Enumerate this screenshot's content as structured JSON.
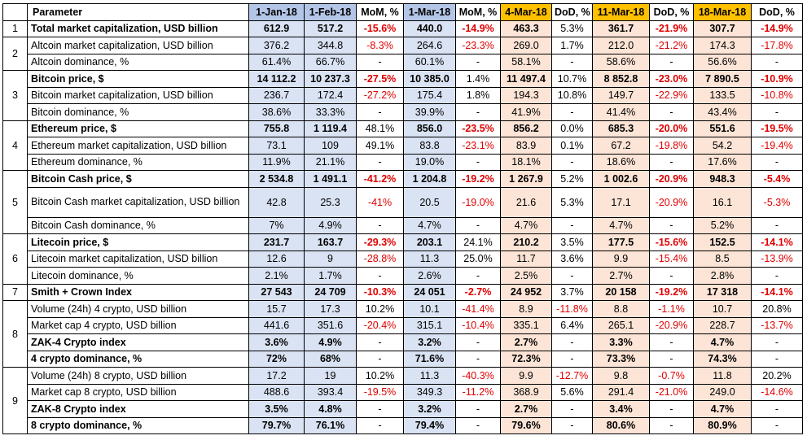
{
  "headers": [
    "",
    "Parameter",
    "1-Jan-18",
    "1-Feb-18",
    "MoM, %",
    "1-Mar-18",
    "MoM, %",
    "4-Mar-18",
    "DoD, %",
    "11-Mar-18",
    "DoD, %",
    "18-Mar-18",
    "DoD, %"
  ],
  "groups": [
    {
      "num": "1",
      "rows": [
        {
          "bold": true,
          "param": "Total market capitalization, USD billion",
          "v": [
            "612.9",
            "517.2",
            "-15.6%",
            "440.0",
            "-14.9%",
            "463.3",
            "5.3%",
            "361.7",
            "-21.9%",
            "307.7",
            "-14.9%"
          ]
        }
      ]
    },
    {
      "num": "2",
      "rows": [
        {
          "bold": false,
          "param": "Altcoin market capitalization, USD billion",
          "v": [
            "376.2",
            "344.8",
            "-8.3%",
            "264.6",
            "-23.3%",
            "269.0",
            "1.7%",
            "212.0",
            "-21.2%",
            "174.3",
            "-17.8%"
          ]
        },
        {
          "bold": false,
          "param": "Altcoin dominance, %",
          "v": [
            "61.4%",
            "66.7%",
            "-",
            "60.1%",
            "-",
            "58.1%",
            "-",
            "58.6%",
            "-",
            "56.6%",
            "-"
          ]
        }
      ]
    },
    {
      "num": "3",
      "rows": [
        {
          "bold": true,
          "param": "Bitcoin price, $",
          "v": [
            "14 112.2",
            "10 237.3",
            "-27.5%",
            "10 385.0",
            "1.4%",
            "11 497.4",
            "10.7%",
            "8 852.8",
            "-23.0%",
            "7 890.5",
            "-10.9%"
          ]
        },
        {
          "bold": false,
          "param": "Bitcoin market capitalization, USD billion",
          "v": [
            "236.7",
            "172.4",
            "-27.2%",
            "175.4",
            "1.8%",
            "194.3",
            "10.8%",
            "149.7",
            "-22.9%",
            "133.5",
            "-10.8%"
          ]
        },
        {
          "bold": false,
          "param": "Bitcoin dominance, %",
          "v": [
            "38.6%",
            "33.3%",
            "-",
            "39.9%",
            "-",
            "41.9%",
            "-",
            "41.4%",
            "-",
            "43.4%",
            "-"
          ]
        }
      ]
    },
    {
      "num": "4",
      "rows": [
        {
          "bold": true,
          "param": "Ethereum price, $",
          "v": [
            "755.8",
            "1 119.4",
            "48.1%",
            "856.0",
            "-23.5%",
            "856.2",
            "0.0%",
            "685.3",
            "-20.0%",
            "551.6",
            "-19.5%"
          ]
        },
        {
          "bold": false,
          "param": "Ethereum market capitalization, USD billion",
          "v": [
            "73.1",
            "109",
            "49.1%",
            "83.8",
            "-23.1%",
            "83.9",
            "0.1%",
            "67.2",
            "-19.8%",
            "54.2",
            "-19.4%"
          ]
        },
        {
          "bold": false,
          "param": "Ethereum dominance, %",
          "v": [
            "11.9%",
            "21.1%",
            "-",
            "19.0%",
            "-",
            "18.1%",
            "-",
            "18.6%",
            "-",
            "17.6%",
            "-"
          ]
        }
      ]
    },
    {
      "num": "5",
      "rows": [
        {
          "bold": true,
          "param": "Bitcoin Cash price, $",
          "v": [
            "2 534.8",
            "1 491.1",
            "-41.2%",
            "1 204.8",
            "-19.2%",
            "1 267.9",
            "5.2%",
            "1 002.6",
            "-20.9%",
            "948.3",
            "-5.4%"
          ]
        },
        {
          "bold": false,
          "wrap": true,
          "param": "Bitcoin Cash market capitalization, USD billion",
          "v": [
            "42.8",
            "25.3",
            "-41%",
            "20.5",
            "-19.0%",
            "21.6",
            "5.3%",
            "17.1",
            "-20.9%",
            "16.1",
            "-5.3%"
          ]
        },
        {
          "bold": false,
          "param": "Bitcoin Cash dominance, %",
          "v": [
            "7%",
            "4.9%",
            "-",
            "4.7%",
            "-",
            "4.7%",
            "-",
            "4.7%",
            "-",
            "5.2%",
            "-"
          ]
        }
      ]
    },
    {
      "num": "6",
      "rows": [
        {
          "bold": true,
          "param": "Litecoin price, $",
          "v": [
            "231.7",
            "163.7",
            "-29.3%",
            "203.1",
            "24.1%",
            "210.2",
            "3.5%",
            "177.5",
            "-15.6%",
            "152.5",
            "-14.1%"
          ]
        },
        {
          "bold": false,
          "param": "Litecoin market capitalization, USD billion",
          "v": [
            "12.6",
            "9",
            "-28.8%",
            "11.3",
            "25.0%",
            "11.7",
            "3.6%",
            "9.9",
            "-15.4%",
            "8.5",
            "-13.9%"
          ]
        },
        {
          "bold": false,
          "param": "Litecoin dominance, %",
          "v": [
            "2.1%",
            "1.7%",
            "-",
            "2.6%",
            "-",
            "2.5%",
            "-",
            "2.7%",
            "-",
            "2.8%",
            "-"
          ]
        }
      ]
    },
    {
      "num": "7",
      "rows": [
        {
          "bold": true,
          "param": "Smith + Crown Index",
          "v": [
            "27 543",
            "24 709",
            "-10.3%",
            "24 051",
            "-2.7%",
            "24 952",
            "3.7%",
            "20 158",
            "-19.2%",
            "17 318",
            "-14.1%"
          ]
        }
      ]
    },
    {
      "num": "8",
      "rows": [
        {
          "bold": false,
          "param": "Volume (24h) 4 crypto, USD billion",
          "v": [
            "15.7",
            "17.3",
            "10.2%",
            "10.1",
            "-41.4%",
            "8.9",
            "-11.8%",
            "8.8",
            "-1.1%",
            "10.7",
            "20.8%"
          ]
        },
        {
          "bold": false,
          "param": "Market cap 4 crypto, USD billion",
          "v": [
            "441.6",
            "351.6",
            "-20.4%",
            "315.1",
            "-10.4%",
            "335.1",
            "6.4%",
            "265.1",
            "-20.9%",
            "228.7",
            "-13.7%"
          ]
        },
        {
          "bold": true,
          "param": "ZAK-4 Crypto index",
          "v": [
            "3.6%",
            "4.9%",
            "-",
            "3.2%",
            "-",
            "2.7%",
            "-",
            "3.3%",
            "-",
            "4.7%",
            "-"
          ]
        },
        {
          "bold": true,
          "param": "4 crypto dominance, %",
          "v": [
            "72%",
            "68%",
            "-",
            "71.6%",
            "-",
            "72.3%",
            "-",
            "73.3%",
            "-",
            "74.3%",
            "-"
          ]
        }
      ]
    },
    {
      "num": "9",
      "rows": [
        {
          "bold": false,
          "param": "Volume (24h) 8 crypto, USD billion",
          "v": [
            "17.2",
            "19",
            "10.2%",
            "11.3",
            "-40.3%",
            "9.9",
            "-12.7%",
            "9.8",
            "-0.7%",
            "11.8",
            "20.2%"
          ]
        },
        {
          "bold": false,
          "param": "Market cap 8 crypto, USD billion",
          "v": [
            "488.6",
            "393.4",
            "-19.5%",
            "349.3",
            "-11.2%",
            "368.9",
            "5.6%",
            "291.4",
            "-21.0%",
            "249.0",
            "-14.6%"
          ]
        },
        {
          "bold": true,
          "param": "ZAK-8 Crypto index",
          "v": [
            "3.5%",
            "4.8%",
            "-",
            "3.2%",
            "-",
            "2.7%",
            "-",
            "3.4%",
            "-",
            "4.7%",
            "-"
          ]
        },
        {
          "bold": true,
          "param": "8 crypto dominance, %",
          "v": [
            "79.7%",
            "76.1%",
            "-",
            "79.4%",
            "-",
            "79.6%",
            "-",
            "80.6%",
            "-",
            "80.9%",
            "-"
          ]
        }
      ]
    }
  ],
  "colors": {
    "header_blue": "#b4c6e7",
    "header_orange": "#ffc000",
    "cell_blue": "#dae3f3",
    "cell_orange": "#fce4d6",
    "negative_red": "#e00000"
  }
}
